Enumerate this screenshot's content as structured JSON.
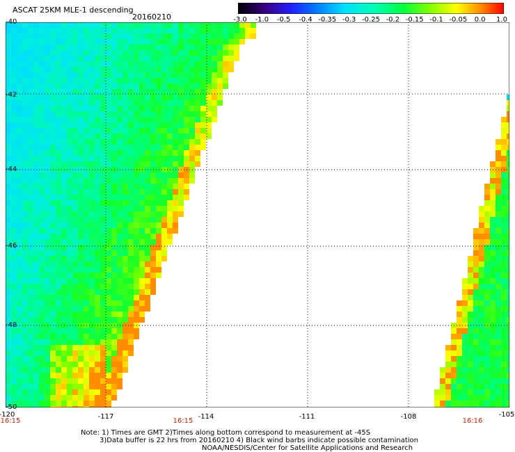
{
  "header": {
    "title": "ASCAT 25KM MLE-1 descending",
    "date": "20160210"
  },
  "colorbar": {
    "labels": [
      "-3.0",
      "-1.0",
      "-0.5",
      "-0.4",
      "-0.35",
      "-0.3",
      "-0.25",
      "-0.2",
      "-0.15",
      "-0.1",
      "-0.05",
      "0.0",
      "1.0"
    ],
    "colors": [
      "#000000",
      "#2a0060",
      "#4a00b0",
      "#2020ff",
      "#0070ff",
      "#00b0ff",
      "#00e0ff",
      "#00ffd0",
      "#00ff60",
      "#40ff00",
      "#b0ff00",
      "#ffff00",
      "#ffb000",
      "#ff6000",
      "#ff0000"
    ]
  },
  "axes": {
    "lat_labels": [
      "-40",
      "-42",
      "-44",
      "-46",
      "-48",
      "-50"
    ],
    "lon_labels": [
      "-120",
      "-117",
      "-114",
      "-111",
      "-108",
      "-105"
    ]
  },
  "times": [
    "16:15",
    "16:15",
    "16:16"
  ],
  "notes": {
    "line1": "Note: 1) Times are GMT 2)Times along bottom correspond to measurement at -45S",
    "line2": "3)Data buffer is 22 hrs from 20160210 4) Black wind barbs indicate possible contamination",
    "line3": "NOAA/NESDIS/Center for Satellite Applications and Research"
  }
}
